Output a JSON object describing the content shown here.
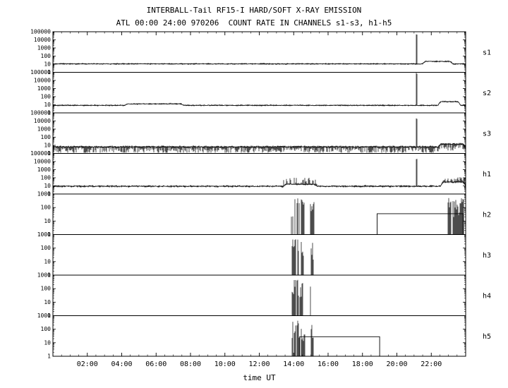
{
  "chart_data": {
    "type": "line",
    "title": "INTERBALL-Tail RF15-I HARD/SOFT X-RAY EMISSION",
    "subtitle": "ATL 00:00 24:00 970206  COUNT RATE IN CHANNELS s1-s3, h1-h5",
    "xlabel": "time UT",
    "x_range_hours": [
      0,
      24
    ],
    "x_major_tick_hours": 2,
    "x_minor_tick_hours": 0.5,
    "x_tick_labels": [
      "02:00",
      "04:00",
      "06:00",
      "08:00",
      "10:00",
      "12:00",
      "14:00",
      "16:00",
      "18:00",
      "20:00",
      "22:00"
    ],
    "grid": false,
    "legend": "panel labels on right side",
    "axis_scale": "log",
    "line_color": "#000000",
    "background_color": "#ffffff",
    "panels": [
      {
        "label": "s1",
        "ylim": [
          1,
          100000
        ],
        "yticks": [
          1,
          10,
          100,
          1000,
          10000,
          100000
        ],
        "baseline": 11,
        "noise_dex": 0.05,
        "fuzz_dex": 0.1,
        "events": [
          {
            "type": "spike",
            "t": 21.15,
            "peak": 60000,
            "width_h": 0.12
          },
          {
            "type": "bump",
            "t0": 21.5,
            "t1": 23.25,
            "level": 22
          }
        ]
      },
      {
        "label": "s2",
        "ylim": [
          1,
          100000
        ],
        "yticks": [
          1,
          10,
          100,
          1000,
          10000,
          100000
        ],
        "baseline": 8.5,
        "noise_dex": 0.05,
        "fuzz_dex": 0.1,
        "events": [
          {
            "type": "bump",
            "t0": 4.2,
            "t1": 7.6,
            "level": 13
          },
          {
            "type": "spike",
            "t": 21.15,
            "peak": 90000,
            "width_h": 0.12
          },
          {
            "type": "bump",
            "t0": 22.4,
            "t1": 23.7,
            "level": 24
          }
        ]
      },
      {
        "label": "s3",
        "ylim": [
          1,
          100000
        ],
        "yticks": [
          1,
          10,
          100,
          1000,
          10000,
          100000
        ],
        "baseline": 6.5,
        "noise_dex": 0.08,
        "fuzz_dex": 0.14,
        "down_dex": 0.8,
        "events": [
          {
            "type": "spike",
            "t": 21.15,
            "peak": 25000,
            "width_h": 0.12
          },
          {
            "type": "bump",
            "t0": 22.4,
            "t1": 24.0,
            "level": 14
          }
        ]
      },
      {
        "label": "h1",
        "ylim": [
          1,
          100000
        ],
        "yticks": [
          1,
          10,
          100,
          1000,
          10000,
          100000
        ],
        "baseline": 9,
        "noise_dex": 0.07,
        "fuzz_dex": 0.13,
        "events": [
          {
            "type": "bump",
            "t0": 13.4,
            "t1": 15.35,
            "level": 16
          },
          {
            "type": "hair",
            "t0": 13.4,
            "t1": 15.35,
            "dex": 0.8,
            "prob": 0.55
          },
          {
            "type": "spike",
            "t": 21.15,
            "peak": 25000,
            "width_h": 0.12
          },
          {
            "type": "bump",
            "t0": 22.55,
            "t1": 24.0,
            "level": 30
          },
          {
            "type": "hair",
            "t0": 22.55,
            "t1": 24.0,
            "dex": 0.65,
            "prob": 0.7
          }
        ]
      },
      {
        "label": "h2",
        "ylim": [
          1,
          1000
        ],
        "yticks": [
          1,
          10,
          100,
          1000
        ],
        "baseline": null,
        "events": [
          {
            "type": "bursts",
            "t0": 13.85,
            "t1": 14.32,
            "peak": 500
          },
          {
            "type": "bursts",
            "t0": 14.4,
            "t1": 14.62,
            "peak": 400
          },
          {
            "type": "bursts",
            "t0": 14.95,
            "t1": 15.18,
            "peak": 300
          },
          {
            "type": "box",
            "t0": 18.85,
            "t1": 23.85,
            "level": 35
          },
          {
            "type": "bursts",
            "t0": 22.95,
            "t1": 23.9,
            "peak": 500
          }
        ]
      },
      {
        "label": "h3",
        "ylim": [
          1,
          1000
        ],
        "yticks": [
          1,
          10,
          100,
          1000
        ],
        "baseline": null,
        "events": [
          {
            "type": "bursts",
            "t0": 13.88,
            "t1": 14.32,
            "peak": 450
          },
          {
            "type": "bursts",
            "t0": 14.4,
            "t1": 14.6,
            "peak": 350
          },
          {
            "type": "bursts",
            "t0": 14.95,
            "t1": 15.15,
            "peak": 250
          }
        ]
      },
      {
        "label": "h4",
        "ylim": [
          1,
          1000
        ],
        "yticks": [
          1,
          10,
          100,
          1000
        ],
        "baseline": null,
        "events": [
          {
            "type": "bursts",
            "t0": 13.88,
            "t1": 14.28,
            "peak": 450
          },
          {
            "type": "bursts",
            "t0": 14.35,
            "t1": 14.55,
            "peak": 300
          },
          {
            "type": "bursts",
            "t0": 14.9,
            "t1": 15.05,
            "peak": 200
          }
        ]
      },
      {
        "label": "h5",
        "ylim": [
          1,
          1000
        ],
        "yticks": [
          1,
          10,
          100,
          1000
        ],
        "baseline": null,
        "events": [
          {
            "type": "bursts",
            "t0": 13.88,
            "t1": 14.33,
            "peak": 450
          },
          {
            "type": "bursts",
            "t0": 14.4,
            "t1": 14.65,
            "peak": 300
          },
          {
            "type": "bursts",
            "t0": 14.95,
            "t1": 15.2,
            "peak": 250
          },
          {
            "type": "box",
            "t0": 14.35,
            "t1": 19.0,
            "level": 28
          }
        ]
      }
    ]
  }
}
